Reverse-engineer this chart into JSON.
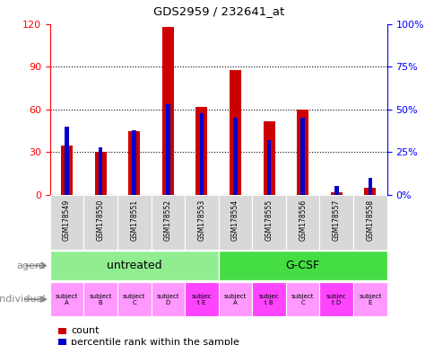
{
  "title": "GDS2959 / 232641_at",
  "samples": [
    "GSM178549",
    "GSM178550",
    "GSM178551",
    "GSM178552",
    "GSM178553",
    "GSM178554",
    "GSM178555",
    "GSM178556",
    "GSM178557",
    "GSM178558"
  ],
  "count": [
    35,
    30,
    45,
    118,
    62,
    88,
    52,
    60,
    2,
    5
  ],
  "percentile": [
    40,
    28,
    38,
    53,
    48,
    45,
    32,
    45,
    5,
    10
  ],
  "ylim_left": [
    0,
    120
  ],
  "ylim_right": [
    0,
    100
  ],
  "yticks_left": [
    0,
    30,
    60,
    90,
    120
  ],
  "yticks_right": [
    0,
    25,
    50,
    75,
    100
  ],
  "ytick_labels_right": [
    "0%",
    "25%",
    "50%",
    "75%",
    "100%"
  ],
  "agent_groups": [
    {
      "label": "untreated",
      "start": 0,
      "end": 5,
      "color": "#90EE90"
    },
    {
      "label": "G-CSF",
      "start": 5,
      "end": 10,
      "color": "#44DD44"
    }
  ],
  "individual_labels": [
    "subject\nA",
    "subject\nB",
    "subject\nC",
    "subject\nD",
    "subjec\nt E",
    "subject\nA",
    "subjec\nt B",
    "subject\nC",
    "subjec\nt D",
    "subject\nE"
  ],
  "individual_highlight": [
    false,
    false,
    false,
    false,
    true,
    false,
    true,
    false,
    true,
    false
  ],
  "bar_color_red": "#CC0000",
  "bar_color_blue": "#0000CC",
  "bar_width": 0.35,
  "blue_bar_width": 0.12,
  "legend_count_label": "count",
  "legend_percentile_label": "percentile rank within the sample",
  "agent_label": "agent",
  "individual_label": "individual",
  "pink_light": "#FF99FF",
  "pink_dark": "#FF44FF",
  "gsm_bg": "#D8D8D8"
}
